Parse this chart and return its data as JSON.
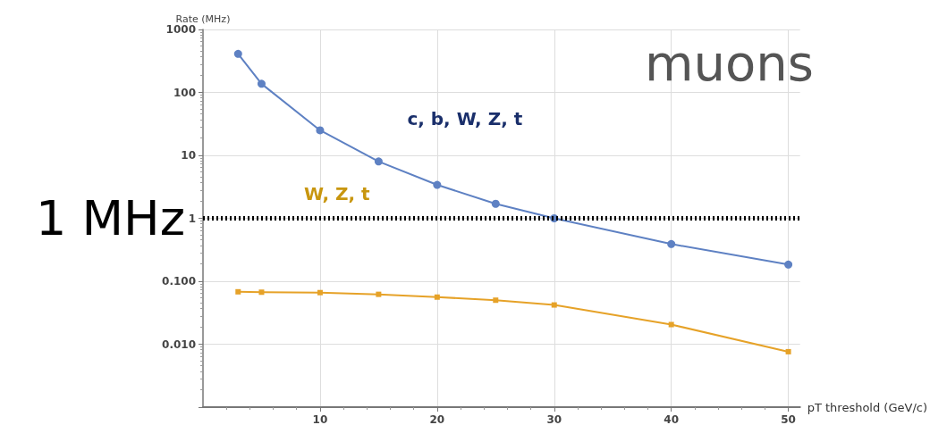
{
  "chart_data": {
    "type": "line",
    "xlabel": "pT threshold (GeV/c)",
    "ylabel": "Rate (MHz)",
    "x": [
      3,
      5,
      10,
      15,
      20,
      25,
      30,
      40,
      50
    ],
    "series": [
      {
        "name": "c, b, W, Z, t",
        "color": "#5e81c3",
        "marker": "circle",
        "values": [
          410,
          137,
          25,
          8,
          3.4,
          1.7,
          1.0,
          0.39,
          0.184
        ]
      },
      {
        "name": "W, Z, t",
        "color": "#e6a228",
        "marker": "square",
        "values": [
          0.068,
          0.067,
          0.066,
          0.062,
          0.056,
          0.05,
          0.042,
          0.0205,
          0.0076
        ]
      }
    ],
    "log": "y",
    "xlim": [
      0,
      51
    ],
    "ylim": [
      0.001,
      1000
    ],
    "xticks": [
      10,
      20,
      30,
      40,
      50
    ],
    "yticks": [
      {
        "value": 0.001,
        "label": null
      },
      {
        "value": 0.01,
        "label": "0.010"
      },
      {
        "value": 0.1,
        "label": "0.100"
      },
      1,
      10,
      100,
      1000
    ],
    "grid": true,
    "ref_lines": [
      {
        "axis": "y",
        "value": 1,
        "label": "1 MHz",
        "color": "#000000",
        "line_style": "dotted"
      }
    ],
    "annotations": [
      "muons"
    ]
  }
}
